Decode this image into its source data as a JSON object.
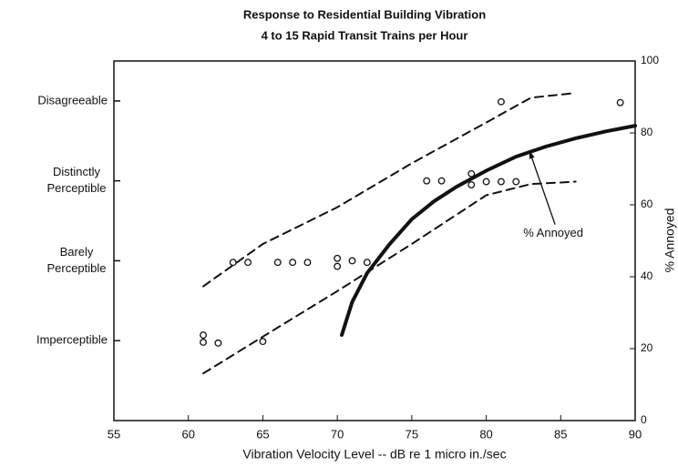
{
  "chart_data": {
    "type": "scatter",
    "title": [
      "Response to Residential Building Vibration",
      "4 to 15 Rapid Transit Trains per Hour"
    ],
    "xlabel": "Vibration Velocity Level -- dB re 1 micro in./sec",
    "y2label": "% Annoyed",
    "xlim": [
      55,
      90
    ],
    "xticks": [
      55,
      60,
      65,
      70,
      75,
      80,
      85,
      90
    ],
    "ylim": [
      0,
      4.5
    ],
    "yticks": [
      {
        "value": 1,
        "label": "Imperceptible"
      },
      {
        "value": 2,
        "label": [
          "Barely",
          "Perceptible"
        ]
      },
      {
        "value": 3,
        "label": [
          "Distinctly",
          "Perceptible"
        ]
      },
      {
        "value": 4,
        "label": "Disagreeable"
      }
    ],
    "y2lim": [
      0,
      100
    ],
    "y2ticks": [
      0,
      20,
      40,
      60,
      80,
      100
    ],
    "color": "#111111",
    "series": [
      {
        "type": "points",
        "x": [
          61,
          61,
          62,
          65,
          63,
          64,
          66,
          67,
          68,
          70,
          70,
          71,
          72,
          76,
          77,
          79,
          79,
          80,
          81,
          82,
          81,
          89
        ],
        "values": [
          1.07,
          0.98,
          0.97,
          0.99,
          1.98,
          1.98,
          1.98,
          1.98,
          1.98,
          2.03,
          1.93,
          2.0,
          1.98,
          3.0,
          3.0,
          3.09,
          2.95,
          2.99,
          2.99,
          2.99,
          3.99,
          3.98
        ]
      },
      {
        "type": "line",
        "dash": true,
        "x": [
          61,
          65,
          70,
          75,
          80,
          83,
          86
        ],
        "values": [
          1.68,
          2.21,
          2.67,
          3.22,
          3.73,
          4.04,
          4.1
        ]
      },
      {
        "type": "line",
        "dash": true,
        "x": [
          61,
          65,
          70,
          75,
          80,
          83,
          86
        ],
        "values": [
          0.59,
          1.05,
          1.62,
          2.21,
          2.82,
          2.96,
          2.99
        ]
      },
      {
        "type": "line",
        "axis": "y2",
        "x": [
          70.3,
          71,
          72,
          73.5,
          75,
          76.5,
          78,
          80,
          82,
          84,
          86,
          88,
          90
        ],
        "values": [
          23.8,
          33,
          41,
          49,
          56,
          61,
          65,
          69.5,
          73.4,
          76.2,
          78.5,
          80.4,
          82
        ]
      }
    ],
    "annotations": [
      {
        "text": "% Annoyed",
        "x": 84.5,
        "y2": 52,
        "arrow_x": 82.9,
        "arrow_y2": 75
      }
    ]
  }
}
